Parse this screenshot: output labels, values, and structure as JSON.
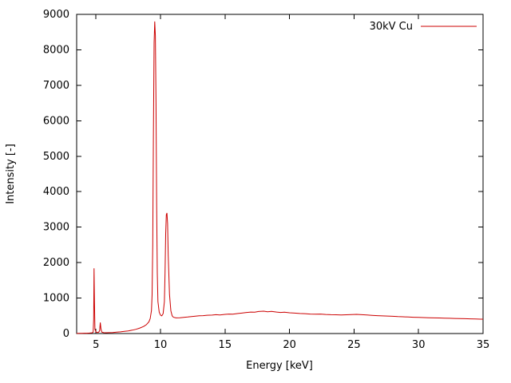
{
  "chart_data": {
    "type": "line",
    "title": "",
    "xlabel": "Energy [keV]",
    "ylabel": "Intensity [-]",
    "xlim": [
      3.5,
      35
    ],
    "ylim": [
      0,
      9000
    ],
    "xticks": [
      5,
      10,
      15,
      20,
      25,
      30,
      35
    ],
    "yticks": [
      0,
      1000,
      2000,
      3000,
      4000,
      5000,
      6000,
      7000,
      8000,
      9000
    ],
    "grid": false,
    "legend_position": "top-right",
    "series": [
      {
        "name": "30kV Cu",
        "color": "#cc0000",
        "points": [
          [
            3.5,
            2
          ],
          [
            3.7,
            4
          ],
          [
            3.9,
            6
          ],
          [
            4.1,
            8
          ],
          [
            4.3,
            10
          ],
          [
            4.5,
            14
          ],
          [
            4.7,
            20
          ],
          [
            4.78,
            40
          ],
          [
            4.82,
            400
          ],
          [
            4.85,
            1840
          ],
          [
            4.88,
            900
          ],
          [
            4.92,
            120
          ],
          [
            5.0,
            45
          ],
          [
            5.1,
            30
          ],
          [
            5.2,
            35
          ],
          [
            5.28,
            80
          ],
          [
            5.33,
            310
          ],
          [
            5.38,
            140
          ],
          [
            5.45,
            40
          ],
          [
            5.6,
            25
          ],
          [
            5.8,
            22
          ],
          [
            6.0,
            25
          ],
          [
            6.3,
            30
          ],
          [
            6.6,
            38
          ],
          [
            6.9,
            48
          ],
          [
            7.2,
            60
          ],
          [
            7.5,
            75
          ],
          [
            7.8,
            95
          ],
          [
            8.1,
            120
          ],
          [
            8.4,
            155
          ],
          [
            8.7,
            200
          ],
          [
            8.9,
            250
          ],
          [
            9.1,
            330
          ],
          [
            9.2,
            420
          ],
          [
            9.3,
            650
          ],
          [
            9.35,
            1100
          ],
          [
            9.4,
            2500
          ],
          [
            9.45,
            5500
          ],
          [
            9.5,
            8200
          ],
          [
            9.55,
            8800
          ],
          [
            9.6,
            8400
          ],
          [
            9.65,
            6500
          ],
          [
            9.7,
            3600
          ],
          [
            9.75,
            1700
          ],
          [
            9.8,
            900
          ],
          [
            9.9,
            600
          ],
          [
            10.0,
            520
          ],
          [
            10.1,
            500
          ],
          [
            10.2,
            560
          ],
          [
            10.3,
            900
          ],
          [
            10.35,
            1700
          ],
          [
            10.4,
            2800
          ],
          [
            10.45,
            3350
          ],
          [
            10.5,
            3400
          ],
          [
            10.55,
            3100
          ],
          [
            10.6,
            2200
          ],
          [
            10.7,
            1100
          ],
          [
            10.8,
            640
          ],
          [
            10.9,
            500
          ],
          [
            11.0,
            460
          ],
          [
            11.2,
            440
          ],
          [
            11.5,
            445
          ],
          [
            11.8,
            455
          ],
          [
            12.1,
            465
          ],
          [
            12.4,
            480
          ],
          [
            12.7,
            490
          ],
          [
            13.0,
            500
          ],
          [
            13.3,
            505
          ],
          [
            13.6,
            515
          ],
          [
            14.0,
            520
          ],
          [
            14.3,
            530
          ],
          [
            14.6,
            525
          ],
          [
            15.0,
            540
          ],
          [
            15.3,
            550
          ],
          [
            15.6,
            545
          ],
          [
            16.0,
            565
          ],
          [
            16.3,
            575
          ],
          [
            16.6,
            590
          ],
          [
            17.0,
            605
          ],
          [
            17.3,
            600
          ],
          [
            17.6,
            620
          ],
          [
            18.0,
            630
          ],
          [
            18.3,
            615
          ],
          [
            18.6,
            625
          ],
          [
            19.0,
            605
          ],
          [
            19.3,
            595
          ],
          [
            19.6,
            600
          ],
          [
            20.0,
            585
          ],
          [
            20.4,
            575
          ],
          [
            20.8,
            565
          ],
          [
            21.2,
            560
          ],
          [
            21.6,
            550
          ],
          [
            22.0,
            545
          ],
          [
            22.4,
            548
          ],
          [
            22.8,
            538
          ],
          [
            23.2,
            532
          ],
          [
            23.6,
            528
          ],
          [
            24.0,
            522
          ],
          [
            24.4,
            528
          ],
          [
            24.8,
            535
          ],
          [
            25.2,
            540
          ],
          [
            25.6,
            532
          ],
          [
            26.0,
            522
          ],
          [
            26.4,
            512
          ],
          [
            26.8,
            505
          ],
          [
            27.2,
            498
          ],
          [
            27.6,
            492
          ],
          [
            28.0,
            486
          ],
          [
            28.4,
            478
          ],
          [
            28.8,
            472
          ],
          [
            29.2,
            466
          ],
          [
            29.6,
            460
          ],
          [
            30.0,
            455
          ],
          [
            30.4,
            450
          ],
          [
            30.8,
            446
          ],
          [
            31.2,
            442
          ],
          [
            31.6,
            438
          ],
          [
            32.0,
            434
          ],
          [
            32.4,
            430
          ],
          [
            32.8,
            426
          ],
          [
            33.2,
            422
          ],
          [
            33.6,
            418
          ],
          [
            34.0,
            414
          ],
          [
            34.4,
            410
          ],
          [
            34.8,
            406
          ],
          [
            35.0,
            404
          ]
        ]
      }
    ]
  }
}
